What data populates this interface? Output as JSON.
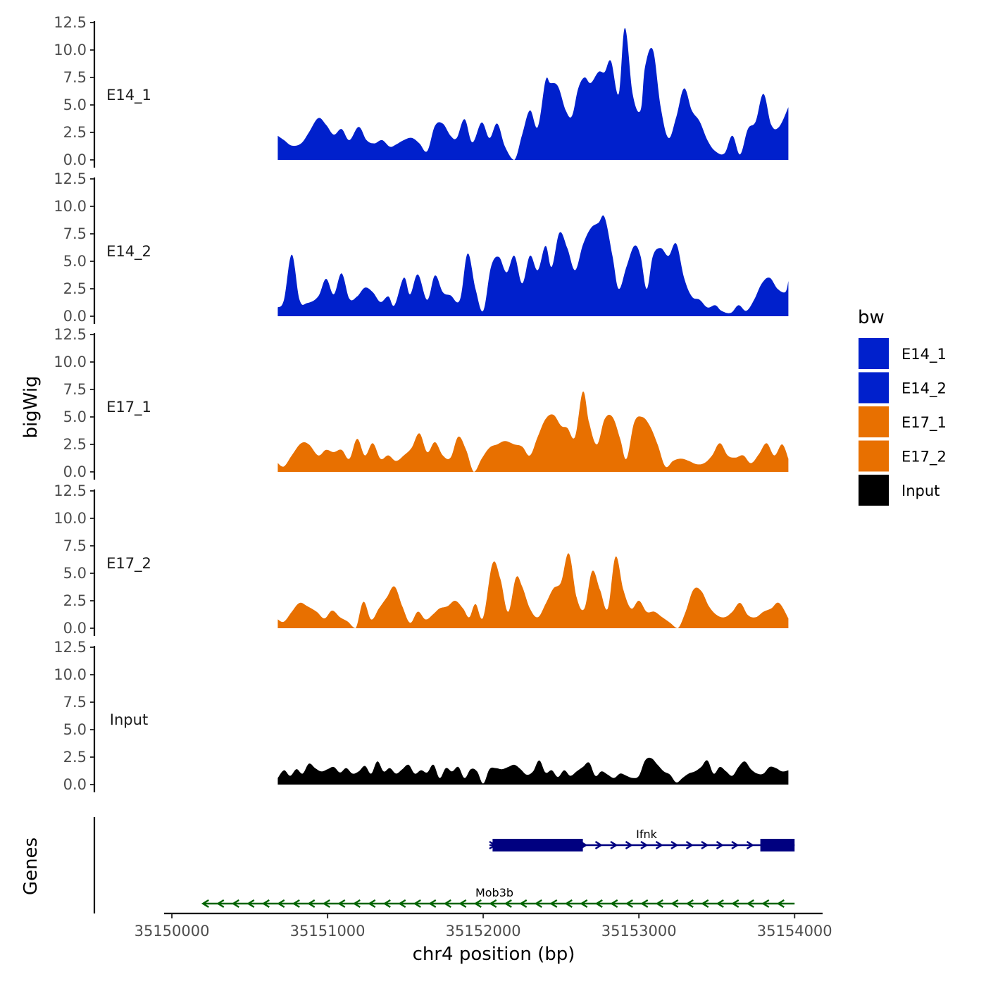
{
  "chart_data": {
    "type": "area",
    "y_axis_title": "bigWig",
    "x_axis_title": "chr4 position (bp)",
    "genes_axis_title": "Genes",
    "y_ticks": [
      "0.0",
      "2.5",
      "5.0",
      "7.5",
      "10.0",
      "12.5"
    ],
    "y_tick_values": [
      0,
      2.5,
      5,
      7.5,
      10,
      12.5
    ],
    "ylim": [
      0,
      12.5
    ],
    "x_ticks": [
      "35150000",
      "35151000",
      "35152000",
      "35153000",
      "35154000"
    ],
    "x_tick_values": [
      35150000,
      35151000,
      35152000,
      35153000,
      35154000
    ],
    "xlim": [
      35149950,
      35154180
    ],
    "legend": {
      "title": "bw",
      "entries": [
        {
          "label": "E14_1",
          "color": "#0020CC"
        },
        {
          "label": "E14_2",
          "color": "#0020CC"
        },
        {
          "label": "E17_1",
          "color": "#E87000"
        },
        {
          "label": "E17_2",
          "color": "#E87000"
        },
        {
          "label": "Input",
          "color": "#000000"
        }
      ]
    },
    "series": [
      {
        "name": "E14_1",
        "color": "#0020CC",
        "x": [
          35150680,
          35150720,
          35150770,
          35150830,
          35150880,
          35150940,
          35150990,
          35151040,
          35151090,
          35151140,
          35151200,
          35151250,
          35151300,
          35151350,
          35151400,
          35151440,
          35151490,
          35151540,
          35151590,
          35151640,
          35151690,
          35151740,
          35151790,
          35151830,
          35151880,
          35151930,
          35151990,
          35152040,
          35152090,
          35152140,
          35152200,
          35152250,
          35152300,
          35152350,
          35152400,
          35152430,
          35152480,
          35152530,
          35152570,
          35152610,
          35152650,
          35152690,
          35152740,
          35152780,
          35152820,
          35152870,
          35152910,
          35152960,
          35153010,
          35153040,
          35153090,
          35153140,
          35153190,
          35153240,
          35153290,
          35153340,
          35153390,
          35153440,
          35153490,
          35153550,
          35153600,
          35153650,
          35153700,
          35153750,
          35153800,
          35153850,
          35153900,
          35153960
        ],
        "y": [
          2.2,
          1.8,
          1.3,
          1.5,
          2.5,
          3.8,
          3.2,
          2.3,
          2.8,
          1.8,
          3.0,
          1.8,
          1.5,
          1.8,
          1.2,
          1.4,
          1.8,
          2.0,
          1.5,
          0.8,
          3.1,
          3.3,
          2.2,
          2.0,
          3.7,
          1.6,
          3.4,
          2.0,
          3.3,
          1.2,
          0.0,
          2.3,
          4.5,
          3.0,
          7.2,
          7.0,
          6.7,
          4.5,
          4.0,
          6.5,
          7.5,
          7.0,
          8.0,
          8.0,
          9.0,
          6.0,
          12.0,
          6.0,
          4.5,
          8.5,
          10.0,
          4.8,
          2.0,
          3.9,
          6.5,
          4.5,
          3.5,
          1.8,
          0.8,
          0.6,
          2.2,
          0.5,
          2.8,
          3.5,
          6.0,
          3.2,
          3.0,
          4.8
        ]
      },
      {
        "name": "E14_2",
        "color": "#0020CC",
        "x": [
          35150680,
          35150720,
          35150770,
          35150820,
          35150870,
          35150940,
          35150990,
          35151040,
          35151090,
          35151140,
          35151190,
          35151240,
          35151290,
          35151340,
          35151390,
          35151430,
          35151490,
          35151530,
          35151580,
          35151640,
          35151690,
          35151740,
          35151790,
          35151850,
          35151900,
          35151950,
          35152000,
          35152050,
          35152100,
          35152150,
          35152200,
          35152250,
          35152300,
          35152350,
          35152400,
          35152440,
          35152490,
          35152540,
          35152590,
          35152640,
          35152690,
          35152740,
          35152780,
          35152830,
          35152870,
          35152920,
          35152970,
          35153010,
          35153050,
          35153090,
          35153140,
          35153190,
          35153240,
          35153290,
          35153340,
          35153390,
          35153440,
          35153490,
          35153530,
          35153590,
          35153640,
          35153690,
          35153740,
          35153790,
          35153840,
          35153890,
          35153940,
          35153960
        ],
        "y": [
          0.8,
          1.5,
          5.6,
          1.5,
          1.2,
          1.8,
          3.4,
          2.0,
          3.9,
          1.6,
          1.8,
          2.6,
          2.2,
          1.3,
          1.8,
          1.0,
          3.5,
          2.0,
          3.8,
          1.5,
          3.7,
          2.2,
          1.9,
          1.5,
          5.7,
          2.5,
          0.5,
          4.5,
          5.4,
          4.0,
          5.5,
          3.0,
          5.5,
          4.2,
          6.4,
          4.5,
          7.6,
          6.2,
          4.2,
          6.5,
          8.0,
          8.5,
          9.0,
          5.5,
          2.5,
          4.5,
          6.4,
          5.5,
          2.5,
          5.5,
          6.2,
          5.5,
          6.6,
          3.5,
          1.8,
          1.5,
          0.8,
          1.0,
          0.5,
          0.3,
          1.0,
          0.5,
          1.5,
          3.0,
          3.5,
          2.5,
          2.2,
          3.2
        ]
      },
      {
        "name": "E17_1",
        "color": "#E87000",
        "x": [
          35150680,
          35150720,
          35150770,
          35150830,
          35150880,
          35150940,
          35150990,
          35151040,
          35151090,
          35151140,
          35151190,
          35151240,
          35151290,
          35151340,
          35151390,
          35151440,
          35151490,
          35151540,
          35151590,
          35151640,
          35151690,
          35151740,
          35151790,
          35151840,
          35151890,
          35151940,
          35151990,
          35152040,
          35152090,
          35152140,
          35152200,
          35152250,
          35152300,
          35152350,
          35152400,
          35152450,
          35152500,
          35152540,
          35152590,
          35152640,
          35152680,
          35152730,
          35152780,
          35152830,
          35152880,
          35152920,
          35152970,
          35153020,
          35153070,
          35153120,
          35153170,
          35153220,
          35153270,
          35153320,
          35153370,
          35153420,
          35153470,
          35153520,
          35153570,
          35153620,
          35153670,
          35153720,
          35153770,
          35153820,
          35153870,
          35153920,
          35153960
        ],
        "y": [
          0.8,
          0.5,
          1.5,
          2.6,
          2.5,
          1.5,
          2.0,
          1.8,
          2.0,
          1.2,
          3.0,
          1.5,
          2.6,
          1.2,
          1.5,
          1.0,
          1.5,
          2.2,
          3.5,
          1.8,
          2.7,
          1.5,
          1.3,
          3.2,
          2.0,
          0.0,
          1.2,
          2.2,
          2.5,
          2.8,
          2.5,
          2.3,
          1.5,
          3.2,
          4.8,
          5.2,
          4.2,
          4.0,
          3.2,
          7.3,
          4.5,
          2.5,
          4.8,
          5.0,
          3.0,
          1.2,
          4.5,
          5.0,
          4.2,
          2.5,
          0.5,
          1.0,
          1.2,
          1.0,
          0.7,
          0.8,
          1.5,
          2.6,
          1.5,
          1.3,
          1.5,
          0.8,
          1.6,
          2.6,
          1.5,
          2.5,
          1.2
        ]
      },
      {
        "name": "E17_2",
        "color": "#E87000",
        "x": [
          35150680,
          35150720,
          35150770,
          35150820,
          35150870,
          35150930,
          35150980,
          35151030,
          35151080,
          35151130,
          35151180,
          35151230,
          35151280,
          35151330,
          35151380,
          35151430,
          35151480,
          35151530,
          35151580,
          35151630,
          35151680,
          35151720,
          35151770,
          35151820,
          35151870,
          35151910,
          35151950,
          35152000,
          35152060,
          35152110,
          35152160,
          35152210,
          35152250,
          35152300,
          35152350,
          35152400,
          35152450,
          35152500,
          35152550,
          35152600,
          35152650,
          35152700,
          35152750,
          35152800,
          35152850,
          35152900,
          35152950,
          35153000,
          35153050,
          35153100,
          35153150,
          35153200,
          35153250,
          35153300,
          35153350,
          35153400,
          35153450,
          35153500,
          35153550,
          35153600,
          35153650,
          35153700,
          35153750,
          35153800,
          35153850,
          35153900,
          35153960
        ],
        "y": [
          0.8,
          0.6,
          1.5,
          2.3,
          2.0,
          1.5,
          0.9,
          1.6,
          1.0,
          0.6,
          0.0,
          2.4,
          0.8,
          1.8,
          2.8,
          3.8,
          2.0,
          0.5,
          1.5,
          0.8,
          1.3,
          1.8,
          2.0,
          2.5,
          1.8,
          1.0,
          2.2,
          1.0,
          5.9,
          4.5,
          1.5,
          4.6,
          3.8,
          1.8,
          1.0,
          2.2,
          3.6,
          4.2,
          6.8,
          2.8,
          1.8,
          5.2,
          3.5,
          1.8,
          6.5,
          3.5,
          1.8,
          2.5,
          1.5,
          1.5,
          1.0,
          0.5,
          0.0,
          1.5,
          3.5,
          3.4,
          2.0,
          1.2,
          1.0,
          1.5,
          2.3,
          1.2,
          1.0,
          1.5,
          1.8,
          2.3,
          0.9
        ]
      },
      {
        "name": "Input",
        "color": "#000000",
        "x": [
          35150680,
          35150720,
          35150760,
          35150800,
          35150840,
          35150880,
          35150920,
          35150960,
          35151000,
          35151040,
          35151080,
          35151120,
          35151160,
          35151200,
          35151240,
          35151280,
          35151320,
          35151360,
          35151400,
          35151440,
          35151480,
          35151520,
          35151560,
          35151600,
          35151640,
          35151680,
          35151720,
          35151760,
          35151800,
          35151840,
          35151880,
          35151920,
          35151960,
          35152000,
          35152040,
          35152080,
          35152120,
          35152160,
          35152200,
          35152240,
          35152280,
          35152320,
          35152360,
          35152400,
          35152440,
          35152480,
          35152520,
          35152560,
          35152600,
          35152640,
          35152680,
          35152720,
          35152760,
          35152800,
          35152840,
          35152880,
          35152920,
          35152960,
          35153000,
          35153040,
          35153080,
          35153120,
          35153160,
          35153200,
          35153240,
          35153280,
          35153320,
          35153360,
          35153400,
          35153440,
          35153480,
          35153520,
          35153560,
          35153600,
          35153640,
          35153680,
          35153720,
          35153760,
          35153800,
          35153840,
          35153880,
          35153920,
          35153960
        ],
        "y": [
          0.6,
          1.3,
          0.8,
          1.4,
          1.0,
          1.9,
          1.5,
          1.2,
          1.4,
          1.6,
          1.1,
          1.5,
          1.0,
          1.2,
          1.7,
          1.0,
          2.1,
          1.2,
          1.5,
          1.0,
          1.4,
          1.8,
          1.0,
          1.3,
          1.1,
          1.8,
          0.6,
          1.5,
          1.2,
          1.6,
          0.6,
          1.4,
          1.2,
          0.1,
          1.4,
          1.5,
          1.4,
          1.6,
          1.8,
          1.4,
          0.9,
          1.2,
          2.2,
          1.1,
          1.3,
          0.7,
          1.3,
          0.8,
          1.2,
          1.6,
          2.0,
          0.8,
          1.2,
          0.9,
          0.6,
          1.0,
          0.8,
          0.6,
          0.8,
          2.2,
          2.4,
          1.8,
          1.2,
          0.9,
          0.2,
          0.6,
          1.0,
          1.2,
          1.6,
          2.2,
          1.0,
          1.6,
          1.2,
          0.8,
          1.6,
          2.1,
          1.4,
          1.0,
          1.0,
          1.6,
          1.5,
          1.2,
          1.3
        ]
      }
    ],
    "genes": [
      {
        "name": "Ifnk",
        "strand": "+",
        "color": "#000080",
        "start": 35152040,
        "end": 35154000,
        "exons": [
          [
            35152060,
            35152640
          ],
          [
            35153780,
            35154000
          ]
        ]
      },
      {
        "name": "Mob3b",
        "strand": "-",
        "color": "#006400",
        "start": 35150200,
        "end": 35154000,
        "exons": []
      }
    ]
  }
}
